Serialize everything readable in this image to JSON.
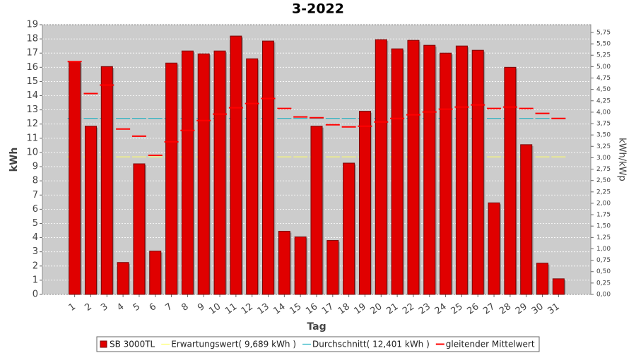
{
  "chart_data": {
    "type": "bar",
    "title": "3-2022",
    "x_label": "Tag",
    "y_label": "kWh",
    "y2_label": "kWh/kWp",
    "categories": [
      "1",
      "2",
      "3",
      "4",
      "5",
      "6",
      "7",
      "8",
      "9",
      "10",
      "11",
      "12",
      "13",
      "14",
      "15",
      "16",
      "17",
      "18",
      "19",
      "20",
      "21",
      "22",
      "23",
      "24",
      "25",
      "26",
      "27",
      "28",
      "29",
      "30",
      "31"
    ],
    "series": [
      {
        "name": "SB 3000TL",
        "color": "#e00000",
        "kind": "bar",
        "values": [
          16.4,
          11.85,
          16.05,
          2.25,
          9.2,
          3.05,
          16.3,
          17.15,
          16.95,
          17.15,
          18.2,
          16.6,
          17.85,
          4.45,
          4.05,
          11.85,
          3.8,
          9.25,
          12.9,
          17.95,
          17.3,
          17.9,
          17.55,
          17.0,
          17.5,
          17.2,
          6.45,
          16.0,
          10.55,
          2.2,
          1.1
        ]
      },
      {
        "name": "Erwartungswert( 9,689 kWh )",
        "color": "#ffff66",
        "kind": "constant",
        "value": 9.689
      },
      {
        "name": "Durchschnitt( 12,401 kWh )",
        "color": "#20b0c0",
        "kind": "constant",
        "value": 12.401
      },
      {
        "name": "gleitender Mittelwert",
        "color": "#ff0000",
        "kind": "dash",
        "values": [
          16.4,
          14.15,
          14.75,
          11.65,
          11.15,
          9.8,
          10.75,
          11.55,
          12.25,
          12.7,
          13.15,
          13.45,
          13.8,
          13.1,
          12.5,
          12.45,
          11.95,
          11.8,
          11.85,
          12.15,
          12.4,
          12.65,
          12.85,
          13.05,
          13.2,
          13.35,
          13.1,
          13.2,
          13.1,
          12.75,
          12.4
        ]
      }
    ],
    "ylim": [
      0,
      19
    ],
    "yticks": [
      0,
      1,
      2,
      3,
      4,
      5,
      6,
      7,
      8,
      9,
      10,
      11,
      12,
      13,
      14,
      15,
      16,
      17,
      18,
      19
    ],
    "y2lim": [
      0,
      5.92
    ],
    "y2ticks": [
      {
        "value": 0,
        "label": "0,00"
      },
      {
        "value": 0.25,
        "label": "0,25"
      },
      {
        "value": 0.5,
        "label": "0,50"
      },
      {
        "value": 0.75,
        "label": "0,75"
      },
      {
        "value": 1,
        "label": "1,00"
      },
      {
        "value": 1.25,
        "label": "1,25"
      },
      {
        "value": 1.5,
        "label": "1,50"
      },
      {
        "value": 1.75,
        "label": "1,75"
      },
      {
        "value": 2,
        "label": "2,00"
      },
      {
        "value": 2.25,
        "label": "2,25"
      },
      {
        "value": 2.5,
        "label": "2,50"
      },
      {
        "value": 2.75,
        "label": "2,75"
      },
      {
        "value": 3,
        "label": "3,00"
      },
      {
        "value": 3.25,
        "label": "3,25"
      },
      {
        "value": 3.5,
        "label": "3,50"
      },
      {
        "value": 3.75,
        "label": "3,75"
      },
      {
        "value": 4,
        "label": "4,00"
      },
      {
        "value": 4.25,
        "label": "4,25"
      },
      {
        "value": 4.5,
        "label": "4,50"
      },
      {
        "value": 4.75,
        "label": "4,75"
      },
      {
        "value": 5,
        "label": "5,00"
      },
      {
        "value": 5.25,
        "label": "5,25"
      },
      {
        "value": 5.5,
        "label": "5,50"
      },
      {
        "value": 5.75,
        "label": "5,75"
      }
    ],
    "grid": true
  }
}
